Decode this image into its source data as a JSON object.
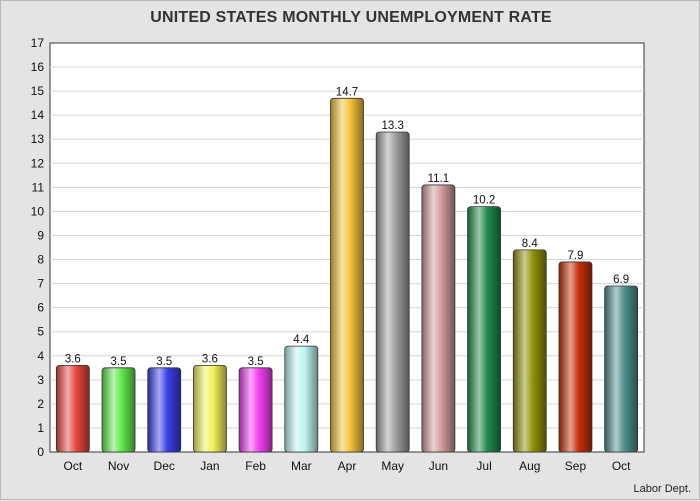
{
  "chart_data": {
    "type": "bar",
    "title": "UNITED STATES MONTHLY UNEMPLOYMENT RATE",
    "xlabel": "",
    "ylabel": "",
    "ylim": [
      0,
      17
    ],
    "yticks": [
      0,
      1,
      2,
      3,
      4,
      5,
      6,
      7,
      8,
      9,
      10,
      11,
      12,
      13,
      14,
      15,
      16,
      17
    ],
    "grid": true,
    "legend": "none",
    "categories": [
      "Oct",
      "Nov",
      "Dec",
      "Jan",
      "Feb",
      "Mar",
      "Apr",
      "May",
      "Jun",
      "Jul",
      "Aug",
      "Sep",
      "Oct"
    ],
    "values": [
      3.6,
      3.5,
      3.5,
      3.6,
      3.5,
      4.4,
      14.7,
      13.3,
      11.1,
      10.2,
      8.4,
      7.9,
      6.9
    ],
    "data_labels": [
      "3.6",
      "3.5",
      "3.5",
      "3.6",
      "3.5",
      "4.4",
      "14.7",
      "13.3",
      "11.1",
      "10.2",
      "8.4",
      "7.9",
      "6.9"
    ],
    "colors": [
      "#e8473f",
      "#5fe84a",
      "#3b3fe8",
      "#f2f25a",
      "#f23ff2",
      "#bff5f2",
      "#f2c23b",
      "#9e9e9e",
      "#d09a9a",
      "#1f8a4c",
      "#8f8f0a",
      "#c42f0a",
      "#4f8f8c"
    ]
  },
  "source": "Labor Dept."
}
